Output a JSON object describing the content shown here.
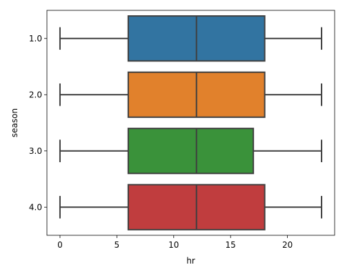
{
  "chart_data": {
    "type": "box",
    "orientation": "horizontal",
    "xlabel": "hr",
    "ylabel": "season",
    "xlim": [
      -1.15,
      24.15
    ],
    "x_ticks": [
      0,
      5,
      10,
      15,
      20
    ],
    "grid": false,
    "categories": [
      "1.0",
      "2.0",
      "3.0",
      "4.0"
    ],
    "series": [
      {
        "category": "1.0",
        "min": 0,
        "q1": 6,
        "median": 12,
        "q3": 18,
        "max": 23,
        "color": "#3274a1"
      },
      {
        "category": "2.0",
        "min": 0,
        "q1": 6,
        "median": 12,
        "q3": 18,
        "max": 23,
        "color": "#e1812c"
      },
      {
        "category": "3.0",
        "min": 0,
        "q1": 6,
        "median": 12,
        "q3": 17,
        "max": 23,
        "color": "#3a923a"
      },
      {
        "category": "4.0",
        "min": 0,
        "q1": 6,
        "median": 12,
        "q3": 18,
        "max": 23,
        "color": "#c03d3e"
      }
    ]
  }
}
